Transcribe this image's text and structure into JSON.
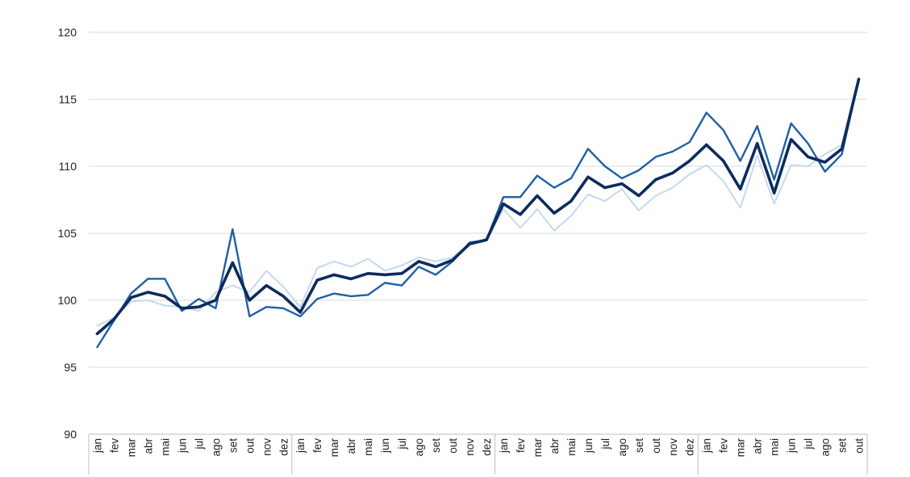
{
  "chart_data": {
    "type": "line",
    "title": "",
    "xlabel": "",
    "ylabel": "",
    "ylim": [
      90,
      120
    ],
    "yticks": [
      90,
      95,
      100,
      105,
      110,
      115,
      120
    ],
    "grid": "horizontal",
    "legend": "none",
    "year_separators_after": [
      11,
      23,
      35
    ],
    "categories": [
      "jan",
      "fev",
      "mar",
      "abr",
      "mai",
      "jun",
      "jul",
      "ago",
      "set",
      "out",
      "nov",
      "dez",
      "jan",
      "fev",
      "mar",
      "abr",
      "mai",
      "jun",
      "jul",
      "ago",
      "set",
      "out",
      "nov",
      "dez",
      "jan",
      "fev",
      "mar",
      "abr",
      "mai",
      "jun",
      "jul",
      "ago",
      "set",
      "out",
      "nov",
      "dez",
      "jan",
      "fev",
      "mar",
      "abr",
      "mai",
      "jun",
      "jul",
      "ago",
      "set",
      "out"
    ],
    "series": [
      {
        "color": "#c5d9ee",
        "width": 2,
        "values": [
          98.1,
          98.7,
          99.9,
          100.0,
          99.6,
          99.5,
          99.2,
          100.6,
          101.1,
          100.6,
          102.2,
          101.0,
          99.5,
          102.4,
          102.9,
          102.5,
          103.1,
          102.2,
          102.6,
          103.2,
          102.9,
          103.2,
          104.2,
          104.6,
          106.8,
          105.4,
          106.8,
          105.2,
          106.3,
          107.9,
          107.4,
          108.3,
          106.7,
          107.8,
          108.4,
          109.4,
          110.1,
          108.9,
          106.9,
          110.8,
          107.2,
          110.1,
          110.0,
          110.9,
          111.6,
          116.3
        ]
      },
      {
        "color": "#1f5fa6",
        "width": 2.4,
        "values": [
          96.5,
          98.5,
          100.5,
          101.6,
          101.6,
          99.2,
          100.1,
          99.4,
          105.3,
          98.8,
          99.5,
          99.4,
          98.8,
          100.1,
          100.5,
          100.3,
          100.4,
          101.3,
          101.1,
          102.5,
          101.9,
          102.9,
          104.3,
          104.5,
          107.7,
          107.7,
          109.3,
          108.4,
          109.1,
          111.3,
          110.0,
          109.1,
          109.7,
          110.7,
          111.1,
          111.8,
          114.0,
          112.7,
          110.4,
          113.0,
          109.0,
          113.2,
          111.7,
          109.6,
          110.9,
          116.5
        ]
      },
      {
        "color": "#0d2b5e",
        "width": 3.6,
        "values": [
          97.5,
          98.6,
          100.2,
          100.6,
          100.3,
          99.4,
          99.5,
          100.0,
          102.8,
          100.0,
          101.1,
          100.3,
          99.1,
          101.5,
          101.9,
          101.6,
          102.0,
          101.9,
          102.0,
          102.9,
          102.5,
          103.0,
          104.2,
          104.5,
          107.2,
          106.4,
          107.8,
          106.5,
          107.4,
          109.2,
          108.4,
          108.7,
          107.8,
          109.0,
          109.5,
          110.4,
          111.6,
          110.4,
          108.3,
          111.7,
          108.0,
          112.0,
          110.7,
          110.3,
          111.3,
          116.5
        ]
      }
    ]
  }
}
